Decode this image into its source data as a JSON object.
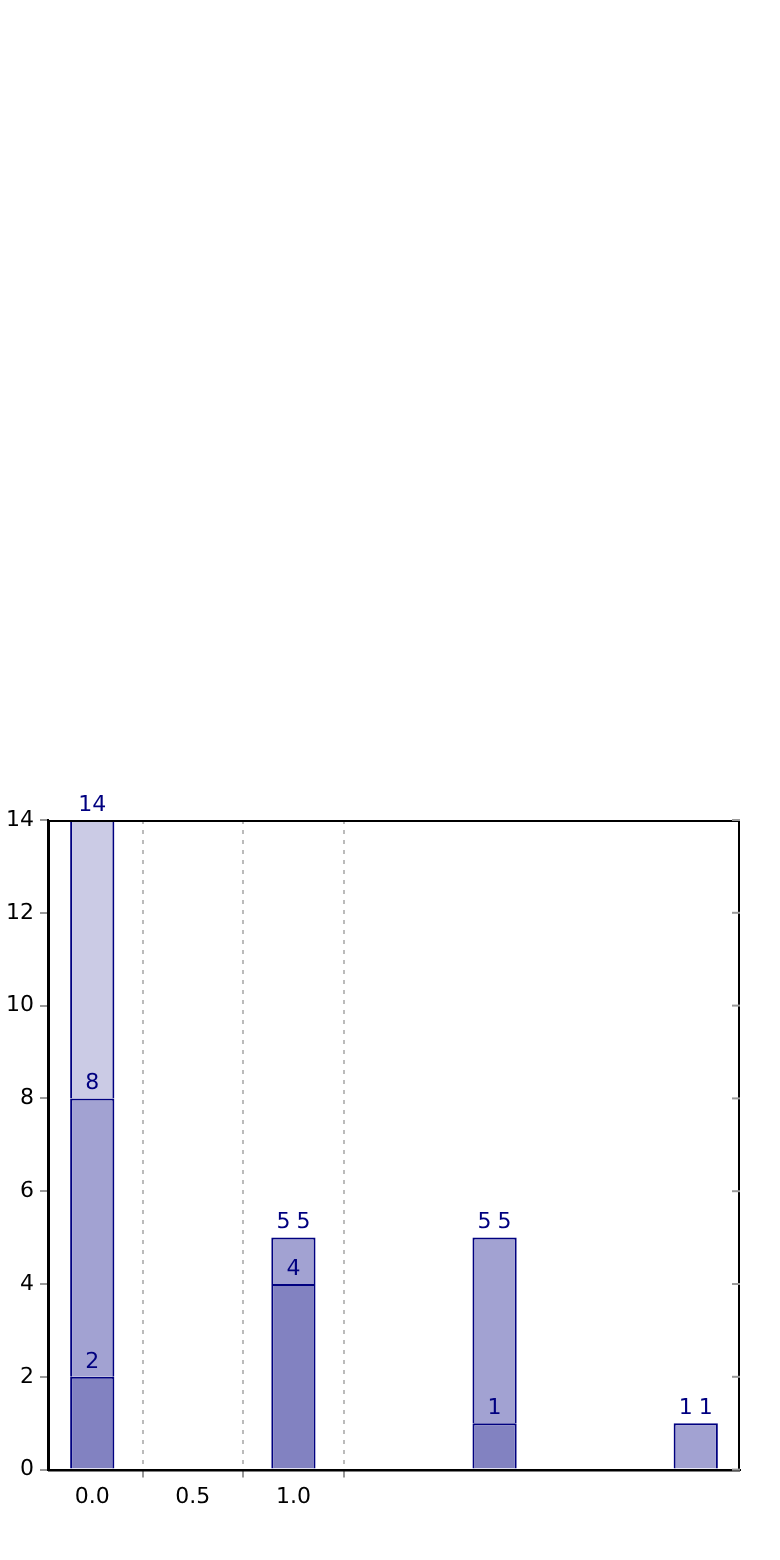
{
  "chart_data": {
    "type": "bar",
    "stacked": true,
    "x": [
      0,
      1,
      2,
      3
    ],
    "series": [
      {
        "color": "#8282c1",
        "values": [
          2,
          4,
          1,
          0
        ]
      },
      {
        "color": "#a2a2d2",
        "values": [
          6,
          1,
          4,
          1
        ]
      },
      {
        "color": "#cbcbe5",
        "values": [
          6,
          0,
          0,
          0
        ]
      }
    ],
    "annotations": [
      {
        "text": "2",
        "x": 0,
        "y": 2
      },
      {
        "text": "8",
        "x": 0,
        "y": 8
      },
      {
        "text": "14",
        "x": 0,
        "y": 14
      },
      {
        "text": "4",
        "x": 1,
        "y": 4
      },
      {
        "text": "5",
        "x": 1,
        "y": 5
      },
      {
        "text": "5",
        "x": 1,
        "y": 5
      },
      {
        "text": "1",
        "x": 2,
        "y": 1
      },
      {
        "text": "5",
        "x": 2,
        "y": 5
      },
      {
        "text": "5",
        "x": 2,
        "y": 5
      },
      {
        "text": "1",
        "x": 3,
        "y": 1
      },
      {
        "text": "1",
        "x": 3,
        "y": 1
      }
    ],
    "xlim": [
      -0.22,
      3.22
    ],
    "xticks": [
      {
        "value": 0,
        "label": "0.0"
      },
      {
        "value": 0.5,
        "label": "0.5"
      },
      {
        "value": 1,
        "label": "1.0"
      }
    ],
    "ylim": [
      0,
      14
    ],
    "yticks": [
      0,
      2,
      4,
      6,
      8,
      10,
      12,
      14
    ],
    "grid": "x",
    "legend": false
  }
}
